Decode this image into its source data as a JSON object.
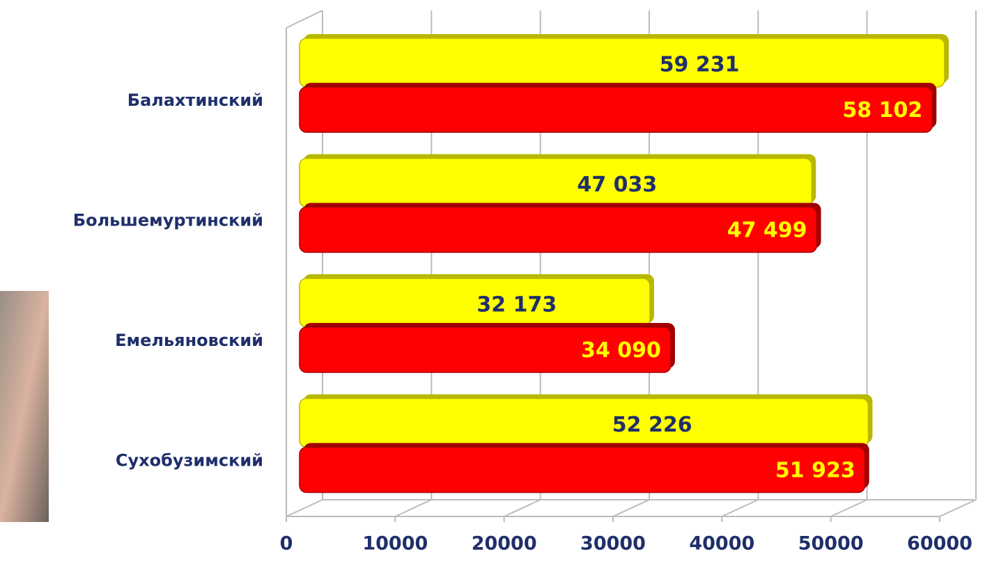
{
  "chart_data": {
    "type": "bar",
    "orientation": "horizontal",
    "categories": [
      "Балахтинский",
      "Большемуртинский",
      "Емельяновский",
      "Сухобузимский"
    ],
    "series": [
      {
        "color": "#ffff00",
        "values": [
          59231,
          47033,
          32173,
          52226
        ],
        "value_labels": [
          "59 231",
          "47 033",
          "32 173",
          "52 226"
        ]
      },
      {
        "color": "#ff0000",
        "values": [
          58102,
          47499,
          34090,
          51923
        ],
        "value_labels": [
          "58 102",
          "47 499",
          "34 090",
          "51 923"
        ]
      }
    ],
    "xlim": [
      0,
      60000
    ],
    "xticks": [
      0,
      10000,
      20000,
      30000,
      40000,
      50000,
      60000
    ],
    "grid": true
  }
}
